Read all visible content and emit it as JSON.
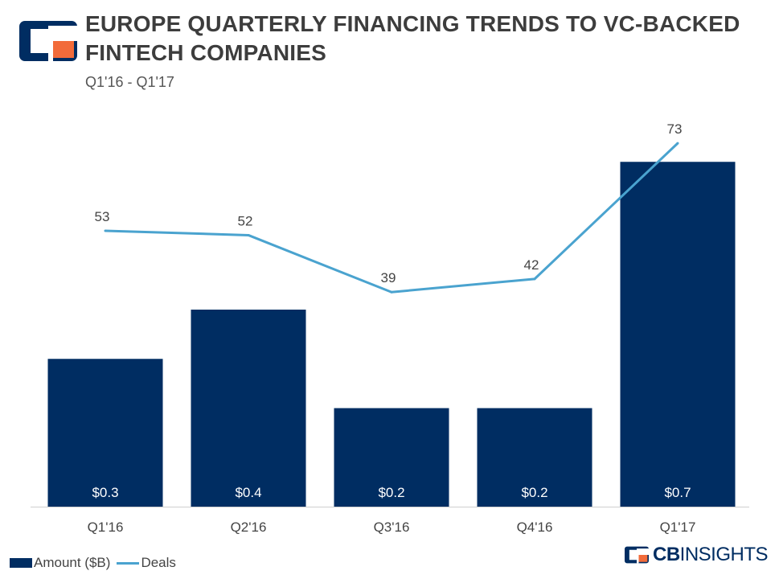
{
  "header": {
    "title": "EUROPE QUARTERLY FINANCING TRENDS TO VC-BACKED FINTECH COMPANIES",
    "subtitle": "Q1'16 - Q1'17"
  },
  "colors": {
    "bar": "#002d62",
    "line": "#4aa3cf",
    "logo_accent": "#f26b3a"
  },
  "chart_data": {
    "type": "bar",
    "categories": [
      "Q1'16",
      "Q2'16",
      "Q3'16",
      "Q4'16",
      "Q1'17"
    ],
    "series": [
      {
        "name": "Amount ($B)",
        "type": "bar",
        "values": [
          0.3,
          0.4,
          0.2,
          0.2,
          0.7
        ],
        "labels": [
          "$0.3",
          "$0.4",
          "$0.2",
          "$0.2",
          "$0.7"
        ],
        "axis": "left",
        "ylim": [
          0,
          0.8
        ]
      },
      {
        "name": "Deals",
        "type": "line",
        "values": [
          53,
          52,
          39,
          42,
          73
        ],
        "labels": [
          "53",
          "52",
          "39",
          "42",
          "73"
        ],
        "axis": "right",
        "ylim": [
          -10,
          80
        ]
      }
    ],
    "title": "EUROPE QUARTERLY FINANCING TRENDS TO VC-BACKED FINTECH COMPANIES",
    "subtitle": "Q1'16 - Q1'17",
    "xlabel": "",
    "ylabel": "",
    "grid": false,
    "legend": "bottom-left"
  },
  "legend": {
    "bar_label": "Amount ($B)",
    "line_label": "Deals"
  },
  "brand": {
    "strong": "CB",
    "rest": "INSIGHTS"
  }
}
